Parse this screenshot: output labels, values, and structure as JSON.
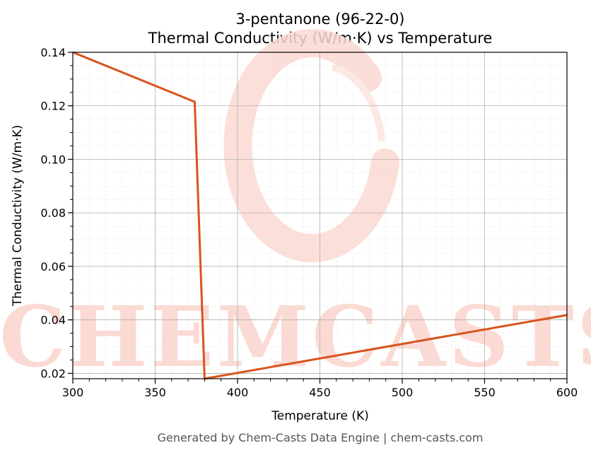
{
  "chart_data": {
    "type": "line",
    "title": "3-pentanone (96-22-0)",
    "subtitle": "Thermal Conductivity (W/m·K) vs Temperature",
    "xlabel": "Temperature (K)",
    "ylabel": "Thermal Conductivity (W/m·K)",
    "xlim": [
      300,
      600
    ],
    "ylim": [
      0.018,
      0.14
    ],
    "x_ticks": [
      300,
      350,
      400,
      450,
      500,
      550,
      600
    ],
    "x_tick_labels": [
      "300",
      "350",
      "400",
      "450",
      "500",
      "550",
      "600"
    ],
    "y_ticks": [
      0.02,
      0.04,
      0.06,
      0.08,
      0.1,
      0.12,
      0.14
    ],
    "y_tick_labels": [
      "0.02",
      "0.04",
      "0.06",
      "0.08",
      "0.10",
      "0.12",
      "0.14"
    ],
    "grid": true,
    "series": [
      {
        "color": "#d9531e",
        "x": [
          300,
          374,
          380,
          600
        ],
        "y": [
          0.14,
          0.1215,
          0.018,
          0.0418
        ]
      }
    ]
  },
  "watermark": {
    "text": "CHEMCASTS",
    "color": "#fbd4cd"
  },
  "footer": "Generated by Chem-Casts Data Engine | chem-casts.com"
}
